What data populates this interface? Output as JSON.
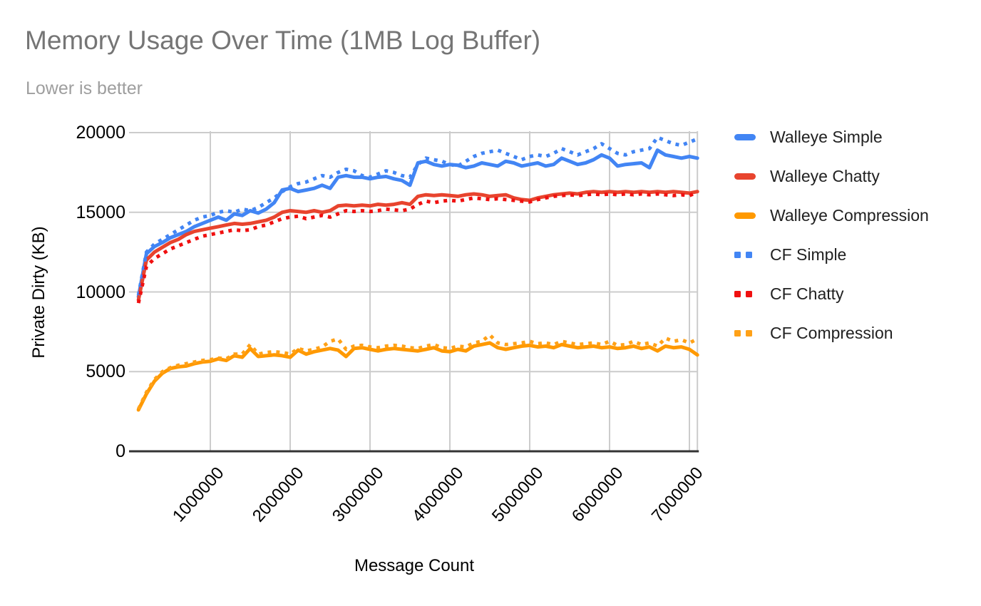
{
  "chart_data": {
    "type": "line",
    "title": "Memory Usage Over Time (1MB Log Buffer)",
    "subtitle": "Lower is better",
    "xlabel": "Message Count",
    "ylabel": "Private Dirty (KB)",
    "xlim": [
      0,
      7100000
    ],
    "ylim": [
      0,
      20000
    ],
    "y_ticks": [
      0,
      5000,
      10000,
      15000,
      20000
    ],
    "x_ticks": [
      1000000,
      2000000,
      3000000,
      4000000,
      5000000,
      6000000,
      7000000
    ],
    "grid": true,
    "legend_position": "right",
    "x": [
      100000,
      200000,
      300000,
      400000,
      500000,
      600000,
      700000,
      800000,
      900000,
      1000000,
      1100000,
      1200000,
      1300000,
      1400000,
      1500000,
      1600000,
      1700000,
      1800000,
      1900000,
      2000000,
      2100000,
      2200000,
      2300000,
      2400000,
      2500000,
      2600000,
      2700000,
      2800000,
      2900000,
      3000000,
      3100000,
      3200000,
      3300000,
      3400000,
      3500000,
      3600000,
      3700000,
      3800000,
      3900000,
      4000000,
      4100000,
      4200000,
      4300000,
      4400000,
      4500000,
      4600000,
      4700000,
      4800000,
      4900000,
      5000000,
      5100000,
      5200000,
      5300000,
      5400000,
      5500000,
      5600000,
      5700000,
      5800000,
      5900000,
      6000000,
      6100000,
      6200000,
      6300000,
      6400000,
      6500000,
      6600000,
      6700000,
      6800000,
      6900000,
      7000000,
      7100000
    ],
    "series": [
      {
        "name": "Walleye Simple",
        "slug": "walleye-simple",
        "color": "#4285F4",
        "style": "solid",
        "values": [
          9700,
          12400,
          12850,
          13100,
          13400,
          13600,
          13800,
          14100,
          14300,
          14500,
          14700,
          14500,
          14900,
          14800,
          15100,
          14950,
          15200,
          15600,
          16400,
          16500,
          16300,
          16400,
          16500,
          16700,
          16500,
          17200,
          17300,
          17200,
          17200,
          17100,
          17200,
          17250,
          17100,
          17000,
          16700,
          18100,
          18200,
          18000,
          17900,
          18000,
          17950,
          17800,
          17900,
          18100,
          18000,
          17900,
          18200,
          18100,
          17900,
          18000,
          18100,
          17900,
          18000,
          18400,
          18200,
          18000,
          18100,
          18300,
          18600,
          18400,
          17900,
          18000,
          18050,
          18100,
          17800,
          18900,
          18600,
          18500,
          18400,
          18500,
          18400
        ]
      },
      {
        "name": "Walleye Chatty",
        "slug": "walleye-chatty",
        "color": "#E8442E",
        "style": "solid",
        "values": [
          9500,
          12000,
          12500,
          12800,
          13100,
          13300,
          13600,
          13800,
          13900,
          14000,
          14100,
          14200,
          14300,
          14250,
          14300,
          14400,
          14500,
          14700,
          15000,
          15100,
          15050,
          15000,
          15100,
          15000,
          15100,
          15400,
          15450,
          15400,
          15450,
          15400,
          15500,
          15450,
          15500,
          15600,
          15500,
          16000,
          16100,
          16050,
          16100,
          16050,
          16000,
          16100,
          16150,
          16100,
          16000,
          16050,
          16100,
          15900,
          15800,
          15750,
          15900,
          16000,
          16100,
          16150,
          16200,
          16150,
          16250,
          16300,
          16250,
          16300,
          16250,
          16300,
          16250,
          16300,
          16250,
          16300,
          16250,
          16300,
          16250,
          16200,
          16300
        ]
      },
      {
        "name": "Walleye Compression",
        "slug": "walleye-compression",
        "color": "#FF9900",
        "style": "solid",
        "values": [
          2600,
          3600,
          4400,
          4900,
          5200,
          5300,
          5350,
          5500,
          5600,
          5650,
          5800,
          5700,
          6000,
          5900,
          6450,
          5950,
          6000,
          6050,
          6000,
          5900,
          6350,
          6100,
          6250,
          6350,
          6450,
          6350,
          5950,
          6450,
          6500,
          6400,
          6300,
          6400,
          6450,
          6400,
          6350,
          6300,
          6400,
          6500,
          6300,
          6250,
          6400,
          6300,
          6600,
          6700,
          6800,
          6500,
          6400,
          6500,
          6600,
          6650,
          6550,
          6600,
          6500,
          6700,
          6600,
          6500,
          6550,
          6600,
          6500,
          6550,
          6450,
          6500,
          6600,
          6450,
          6550,
          6300,
          6600,
          6500,
          6550,
          6400,
          6050
        ]
      },
      {
        "name": "CF Simple",
        "slug": "cf-simple",
        "color": "#4285F4",
        "style": "dotted",
        "values": [
          9800,
          12500,
          13000,
          13300,
          13600,
          13900,
          14200,
          14500,
          14700,
          14800,
          15000,
          15100,
          15000,
          15200,
          15100,
          15300,
          15600,
          15900,
          16300,
          16600,
          16800,
          16900,
          17100,
          17300,
          17200,
          17500,
          17700,
          17600,
          17300,
          17200,
          17400,
          17600,
          17500,
          17300,
          17200,
          18000,
          18400,
          18300,
          18200,
          18000,
          17900,
          18200,
          18500,
          18700,
          18800,
          18900,
          18700,
          18500,
          18300,
          18500,
          18600,
          18500,
          18700,
          19000,
          18800,
          18600,
          18800,
          19000,
          19300,
          19000,
          18700,
          18600,
          18800,
          18900,
          19000,
          19700,
          19500,
          19300,
          19200,
          19400,
          19600
        ]
      },
      {
        "name": "CF Chatty",
        "slug": "cf-chatty",
        "color": "#F01010",
        "style": "dotted",
        "values": [
          9300,
          11600,
          12100,
          12400,
          12700,
          12900,
          13100,
          13300,
          13500,
          13600,
          13700,
          13800,
          13900,
          13850,
          13900,
          14100,
          14200,
          14400,
          14600,
          14700,
          14750,
          14600,
          14700,
          14800,
          14700,
          14900,
          15100,
          15050,
          15100,
          15050,
          15100,
          15200,
          15150,
          15100,
          15200,
          15500,
          15700,
          15600,
          15700,
          15750,
          15700,
          15800,
          15900,
          15850,
          15800,
          15850,
          15800,
          15750,
          15700,
          15650,
          15800,
          15900,
          16000,
          16050,
          16100,
          16050,
          16100,
          16150,
          16100,
          16150,
          16100,
          16150,
          16100,
          16150,
          16100,
          16150,
          16100,
          16050,
          16100,
          16050,
          16250
        ]
      },
      {
        "name": "CF Compression",
        "slug": "cf-compression",
        "color": "#FFA117",
        "style": "dotted",
        "values": [
          2650,
          3700,
          4500,
          5000,
          5250,
          5400,
          5500,
          5600,
          5700,
          5750,
          5850,
          5800,
          6100,
          6100,
          6700,
          6100,
          6200,
          6250,
          6200,
          6100,
          6450,
          6300,
          6400,
          6550,
          6900,
          7050,
          6400,
          6600,
          6650,
          6550,
          6500,
          6600,
          6650,
          6600,
          6500,
          6450,
          6600,
          6700,
          6500,
          6450,
          6600,
          6550,
          6800,
          6900,
          7300,
          6800,
          6700,
          6750,
          6800,
          6900,
          6750,
          6800,
          6700,
          6900,
          6800,
          6700,
          6750,
          6800,
          6700,
          6900,
          6650,
          6700,
          6900,
          6700,
          6800,
          6600,
          7100,
          6900,
          7000,
          6800,
          7050
        ]
      }
    ],
    "colors": {
      "grid": "#cccccc",
      "axis": "#333333",
      "title": "#757575",
      "subtitle": "#9e9e9e",
      "tick_text": "#000000",
      "legend_text": "#212121"
    }
  }
}
